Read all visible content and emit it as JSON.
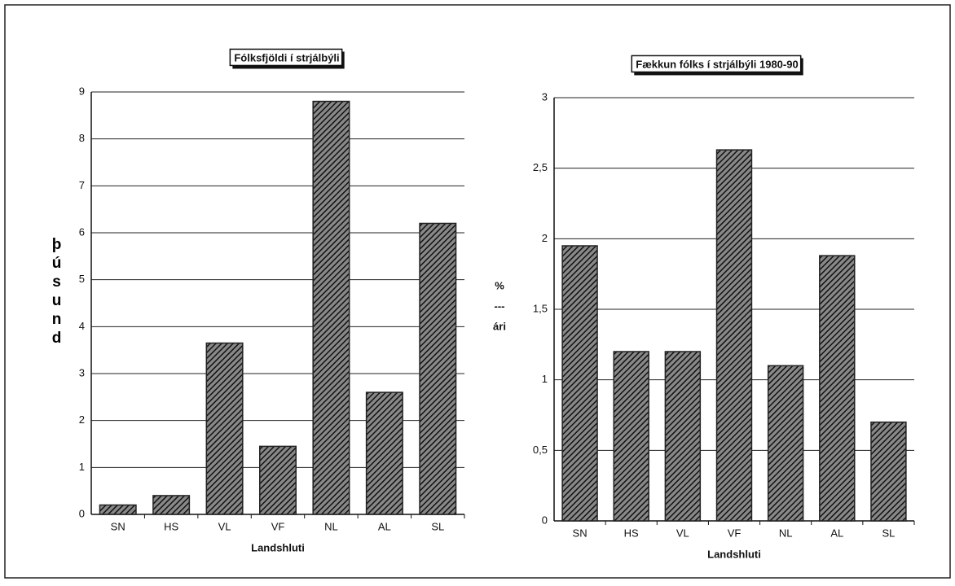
{
  "chart_data": [
    {
      "type": "bar",
      "title": "Fólksfjöldi í strjálbýli",
      "xlabel": "Landshluti",
      "ylabel": "þúsund",
      "categories": [
        "SN",
        "HS",
        "VL",
        "VF",
        "NL",
        "AL",
        "SL"
      ],
      "values": [
        0.2,
        0.4,
        3.65,
        1.45,
        8.8,
        2.6,
        6.2
      ],
      "ylim": [
        0,
        9
      ],
      "yticks": [
        0,
        1,
        2,
        3,
        4,
        5,
        6,
        7,
        8,
        9
      ],
      "grid": true,
      "color": "#222222"
    },
    {
      "type": "bar",
      "title": "Fækkun fólks í strjálbýli 1980-90",
      "xlabel": "Landshluti",
      "ylabel_lines": [
        "%",
        "---",
        "ári"
      ],
      "categories": [
        "SN",
        "HS",
        "VL",
        "VF",
        "NL",
        "AL",
        "SL"
      ],
      "values": [
        1.95,
        1.2,
        1.2,
        2.63,
        1.1,
        1.88,
        0.7
      ],
      "ylim": [
        0,
        3
      ],
      "yticks": [
        0,
        {
          "value": 0.5,
          "label": "0,5"
        },
        1,
        {
          "value": 1.5,
          "label": "1,5"
        },
        2,
        {
          "value": 2.5,
          "label": "2,5"
        },
        3
      ],
      "grid": true,
      "color": "#222222"
    }
  ]
}
